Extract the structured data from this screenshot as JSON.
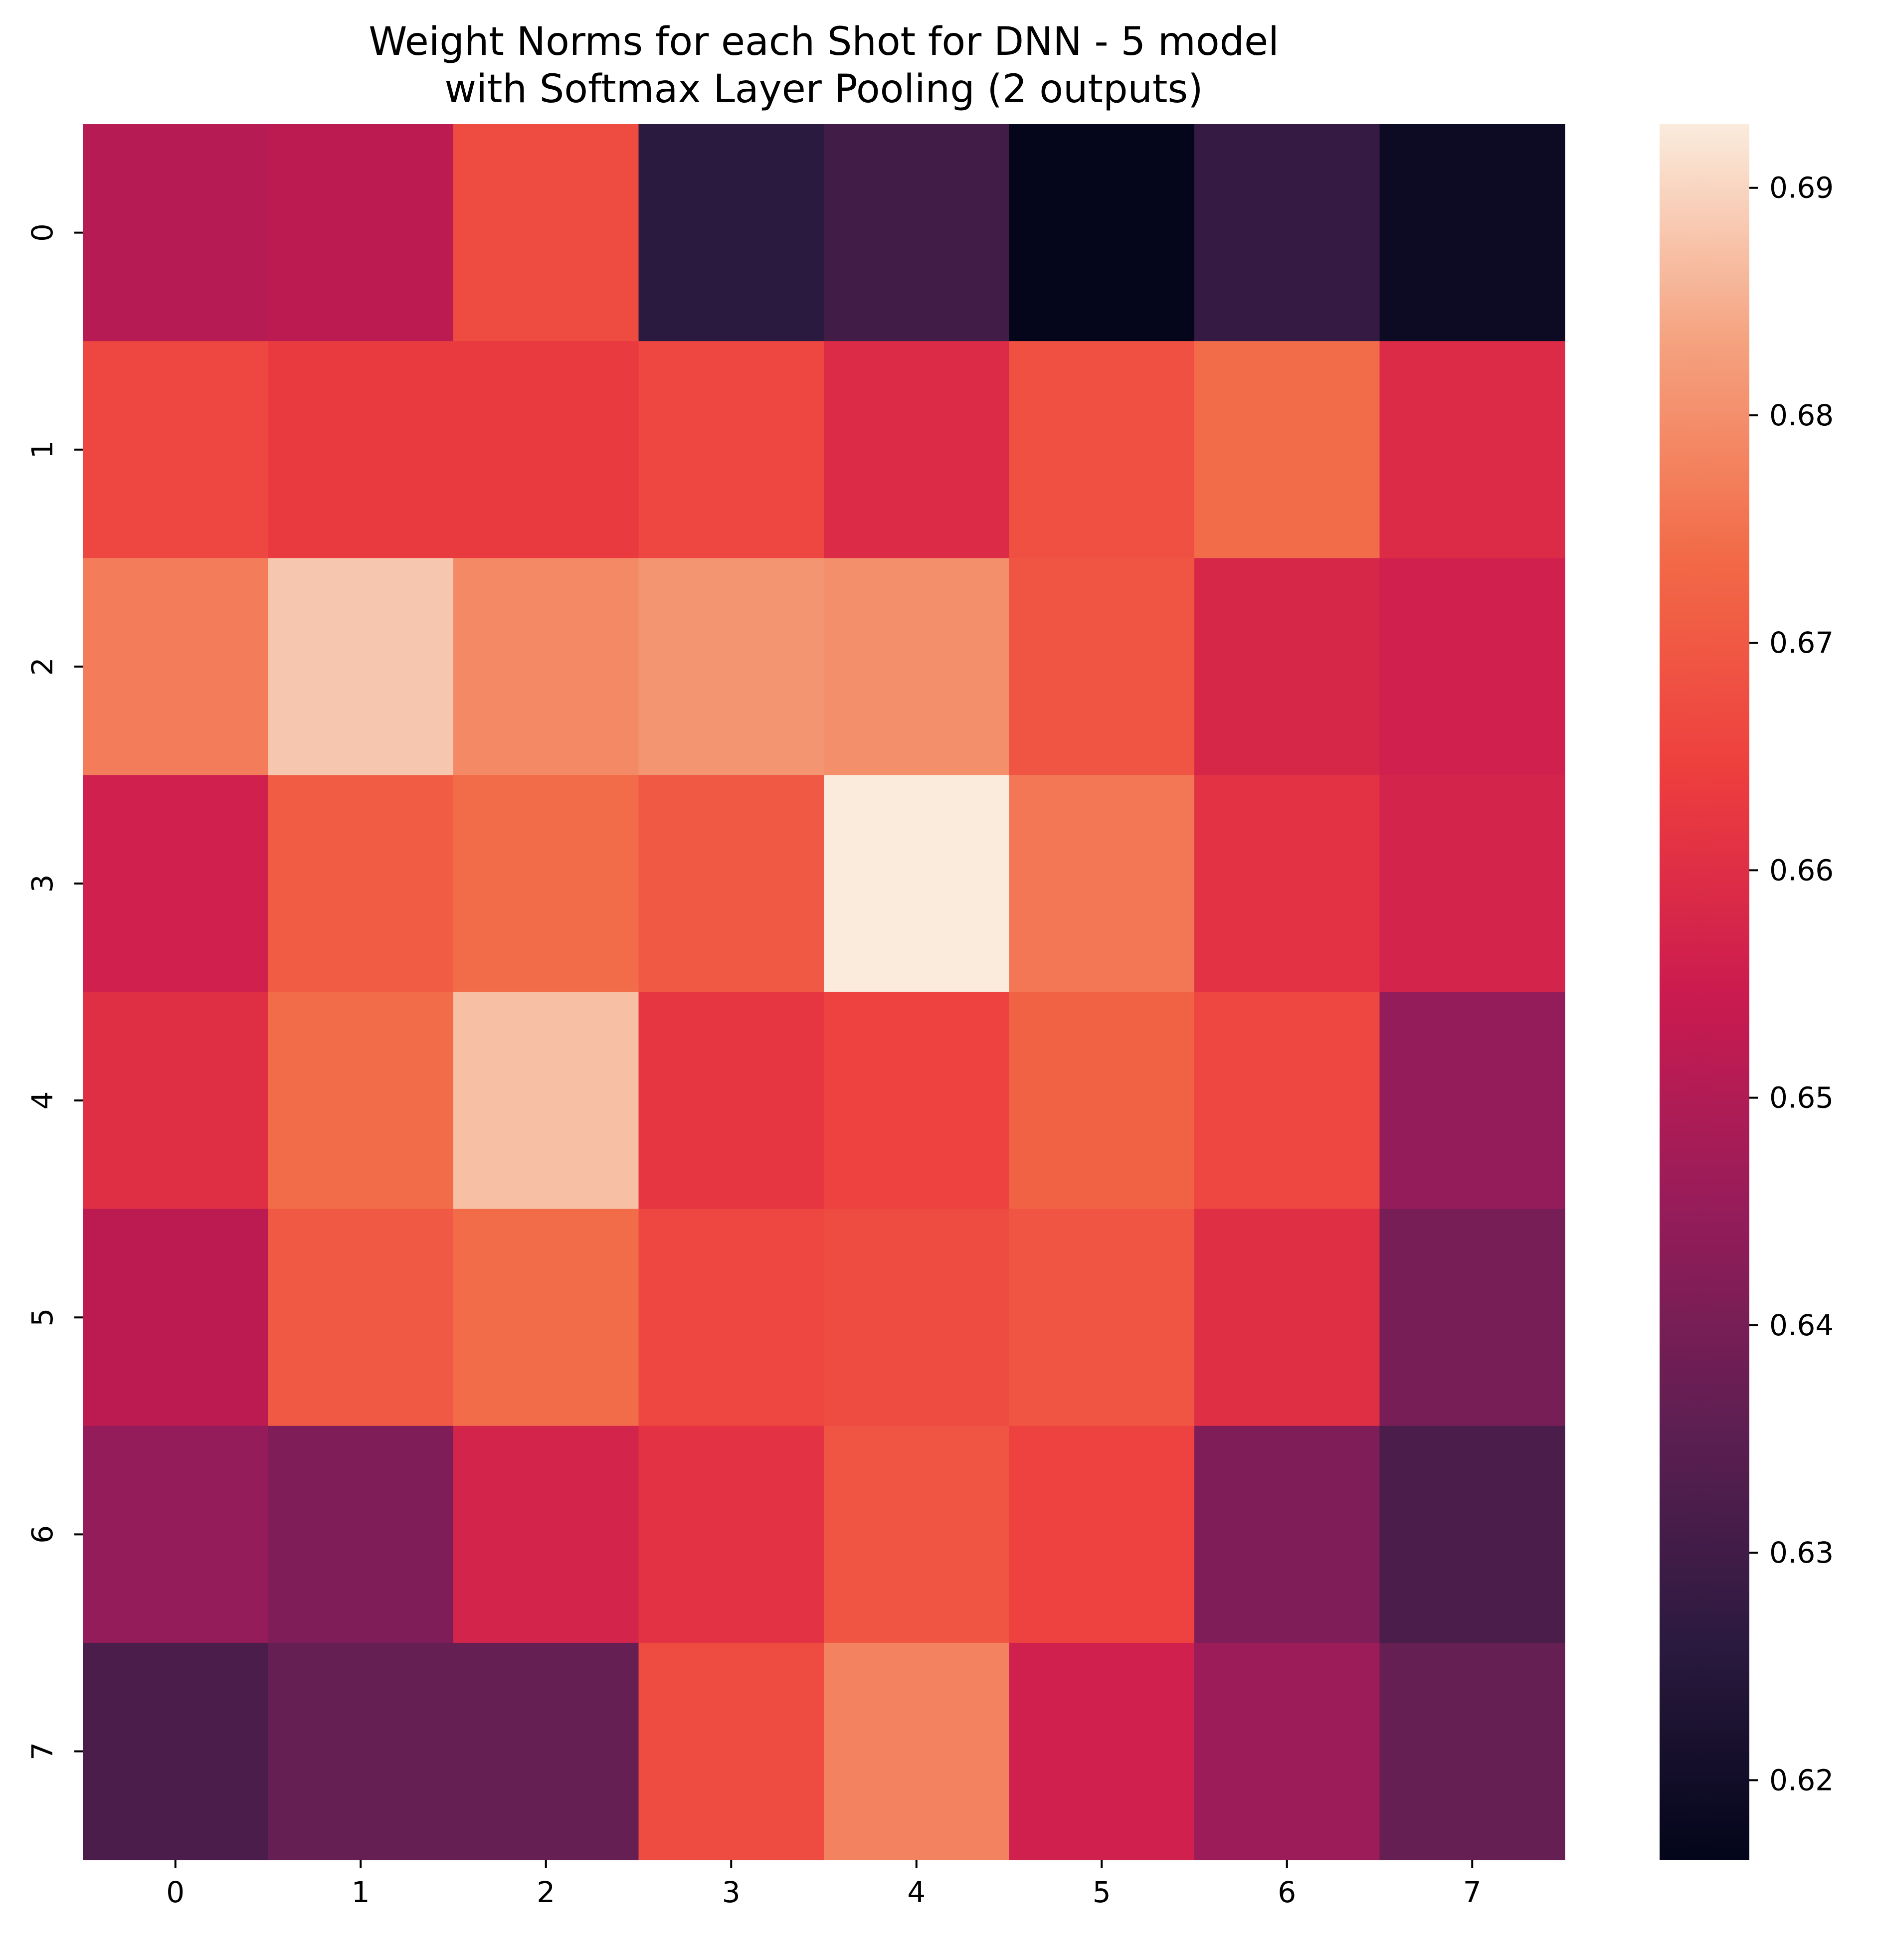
{
  "chart_data": {
    "type": "heatmap",
    "title_lines": [
      "Weight Norms for each Shot for DNN - 5 model",
      "with Softmax Layer Pooling (2 outputs)"
    ],
    "xlabel": "",
    "ylabel": "",
    "x_tick_labels": [
      "0",
      "1",
      "2",
      "3",
      "4",
      "5",
      "6",
      "7"
    ],
    "y_tick_labels": [
      "0",
      "1",
      "2",
      "3",
      "4",
      "5",
      "6",
      "7"
    ],
    "colorbar": {
      "min": 0.6165,
      "max": 0.6928,
      "ticks": [
        "0.62",
        "0.63",
        "0.64",
        "0.65",
        "0.66",
        "0.67",
        "0.68",
        "0.69"
      ],
      "tick_values": [
        0.62,
        0.63,
        0.64,
        0.65,
        0.66,
        0.67,
        0.68,
        0.69
      ],
      "colormap": "rocket"
    },
    "values": [
      [
        0.651,
        0.652,
        0.667,
        0.626,
        0.63,
        0.617,
        0.628,
        0.619
      ],
      [
        0.666,
        0.663,
        0.663,
        0.666,
        0.659,
        0.668,
        0.674,
        0.659
      ],
      [
        0.677,
        0.688,
        0.679,
        0.681,
        0.68,
        0.669,
        0.658,
        0.656
      ],
      [
        0.656,
        0.671,
        0.674,
        0.67,
        0.693,
        0.676,
        0.661,
        0.657
      ],
      [
        0.66,
        0.674,
        0.687,
        0.662,
        0.665,
        0.672,
        0.666,
        0.645
      ],
      [
        0.652,
        0.67,
        0.674,
        0.666,
        0.667,
        0.669,
        0.66,
        0.64
      ],
      [
        0.645,
        0.641,
        0.657,
        0.661,
        0.669,
        0.665,
        0.641,
        0.632
      ],
      [
        0.632,
        0.637,
        0.637,
        0.667,
        0.678,
        0.656,
        0.646,
        0.637
      ]
    ]
  }
}
